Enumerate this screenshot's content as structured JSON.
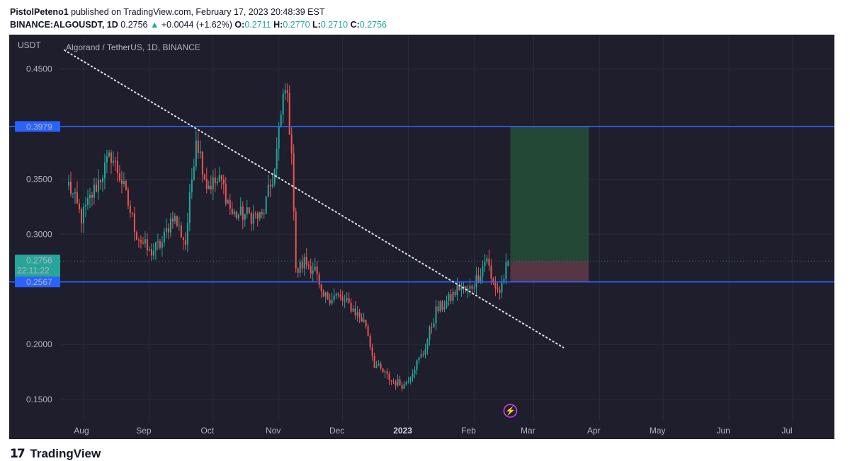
{
  "header": {
    "author": "PistolPeteno1",
    "published": "published on TradingView.com, February 17, 2023 20:48:39 EST",
    "symbol": "BINANCE:ALGOUSDT, 1D",
    "last": "0.2756",
    "arrow": "▲",
    "change": "+0.0044 (+1.62%)",
    "o_label": "O:",
    "o_val": "0.2711",
    "h_label": "H:",
    "h_val": "0.2770",
    "l_label": "L:",
    "l_val": "0.2710",
    "c_label": "C:",
    "c_val": "0.2756"
  },
  "footer": {
    "brand": "TradingView",
    "logo_icon": "tradingview-logo-icon"
  },
  "colors": {
    "background": "#1e1e2c",
    "up": "#26a69a",
    "down": "#ef5350",
    "level_line": "#2962ff",
    "profit_zone": "#234d36",
    "loss_zone": "#5b3845",
    "trendline": "#e0e3eb"
  },
  "chart_data": {
    "type": "candlestick",
    "title": "Algorand / TetherUS, 1D, BINANCE",
    "ylabel": "USDT",
    "ylim": [
      0.13,
      0.48
    ],
    "y_ticks": [
      "0.4500",
      "0.3500",
      "0.3000",
      "0.2000",
      "0.1500"
    ],
    "x_ticks": [
      "Aug",
      "Sep",
      "Oct",
      "Nov",
      "Dec",
      "2023",
      "Feb",
      "Mar",
      "Apr",
      "May",
      "Jun",
      "Jul"
    ],
    "x_range": [
      "2022-07-21",
      "2023-07-20"
    ],
    "price_labels": [
      {
        "text": "0.3979",
        "value": 0.3979,
        "kind": "level"
      },
      {
        "text": "0.2756",
        "value": 0.2756,
        "kind": "last",
        "countdown": "22:11:22"
      },
      {
        "text": "0.2567",
        "value": 0.2567,
        "kind": "level"
      }
    ],
    "horizontal_levels": [
      0.3979,
      0.2567
    ],
    "trendline": {
      "start": [
        "2022-07-23",
        0.4672
      ],
      "end": [
        "2023-03-15",
        0.1971
      ]
    },
    "position_tool": {
      "start": "2023-02-18",
      "end": "2023-03-27",
      "entry": 0.2756,
      "target": 0.3979,
      "stop": 0.2567
    },
    "events": [
      {
        "date": "2023-02-14",
        "icon": "lightning-icon"
      }
    ],
    "anchors": [
      [
        "2022-07-25",
        0.345
      ],
      [
        "2022-07-31",
        0.315
      ],
      [
        "2022-08-06",
        0.34
      ],
      [
        "2022-08-14",
        0.372
      ],
      [
        "2022-08-19",
        0.348
      ],
      [
        "2022-08-26",
        0.3
      ],
      [
        "2022-09-01",
        0.283
      ],
      [
        "2022-09-07",
        0.292
      ],
      [
        "2022-09-12",
        0.318
      ],
      [
        "2022-09-18",
        0.292
      ],
      [
        "2022-09-23",
        0.39
      ],
      [
        "2022-09-28",
        0.345
      ],
      [
        "2022-10-05",
        0.348
      ],
      [
        "2022-10-10",
        0.318
      ],
      [
        "2022-10-17",
        0.318
      ],
      [
        "2022-10-24",
        0.315
      ],
      [
        "2022-10-30",
        0.358
      ],
      [
        "2022-11-04",
        0.44
      ],
      [
        "2022-11-07",
        0.378
      ],
      [
        "2022-11-09",
        0.265
      ],
      [
        "2022-11-13",
        0.275
      ],
      [
        "2022-11-18",
        0.268
      ],
      [
        "2022-11-21",
        0.242
      ],
      [
        "2022-11-28",
        0.244
      ],
      [
        "2022-12-05",
        0.234
      ],
      [
        "2022-12-12",
        0.218
      ],
      [
        "2022-12-16",
        0.182
      ],
      [
        "2022-12-24",
        0.167
      ],
      [
        "2022-12-30",
        0.163
      ],
      [
        "2023-01-04",
        0.18
      ],
      [
        "2023-01-08",
        0.192
      ],
      [
        "2023-01-14",
        0.23
      ],
      [
        "2023-01-20",
        0.24
      ],
      [
        "2023-01-25",
        0.252
      ],
      [
        "2023-01-29",
        0.248
      ],
      [
        "2023-02-03",
        0.262
      ],
      [
        "2023-02-07",
        0.28
      ],
      [
        "2023-02-09",
        0.258
      ],
      [
        "2023-02-13",
        0.248
      ],
      [
        "2023-02-17",
        0.2756
      ]
    ]
  }
}
